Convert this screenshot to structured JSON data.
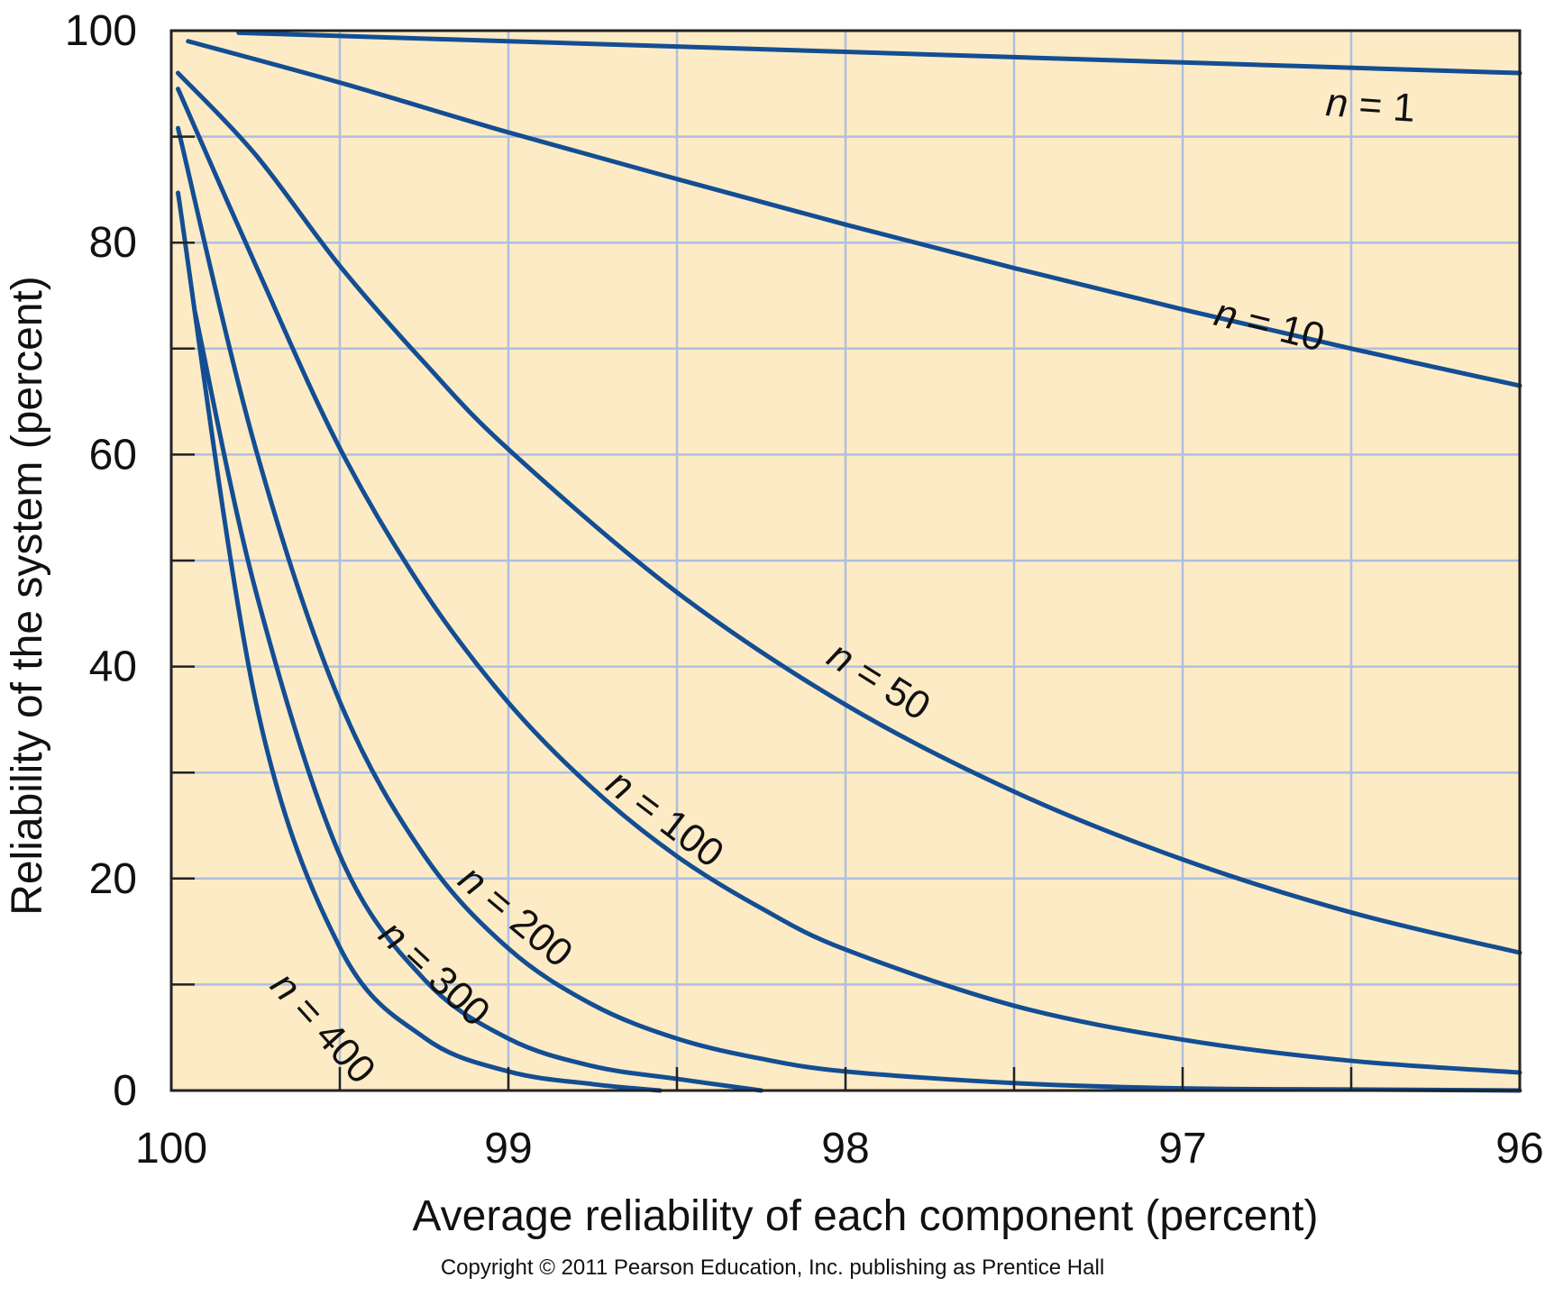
{
  "chart_data": {
    "type": "line",
    "title": "",
    "xlabel": "Average reliability of each component (percent)",
    "ylabel": "Reliability of the system (percent)",
    "xlim": [
      100,
      96
    ],
    "ylim": [
      0,
      100
    ],
    "x_reversed": true,
    "xticks": [
      100,
      99,
      98,
      97,
      96
    ],
    "yticks": [
      0,
      20,
      40,
      60,
      80,
      100
    ],
    "grid": true,
    "legend": "none (inline curve labels)",
    "colors": {
      "background": "#fdebc6",
      "grid": "#aebfe0",
      "line": "#134e93",
      "axis": "#222222"
    },
    "series": [
      {
        "name": "n = 1",
        "label_n": "n",
        "label_rest": " = 1",
        "x": [
          99.8,
          99.0,
          98.0,
          97.0,
          96.0
        ],
        "y": [
          99.8,
          99.0,
          98.0,
          97.0,
          96.0
        ]
      },
      {
        "name": "n = 10",
        "label_n": "n",
        "label_rest": " = 10",
        "x": [
          99.95,
          99.5,
          99.0,
          98.5,
          98.0,
          97.5,
          97.0,
          96.5,
          96.0
        ],
        "y": [
          99.0,
          95.1,
          90.4,
          86.0,
          81.7,
          77.6,
          73.7,
          70.0,
          66.5
        ]
      },
      {
        "name": "n = 50",
        "label_n": "n",
        "label_rest": " = 50",
        "x": [
          99.98,
          99.75,
          99.5,
          99.25,
          99.0,
          98.5,
          98.0,
          97.5,
          97.0,
          96.5,
          96.0
        ],
        "y": [
          96.0,
          88.3,
          77.8,
          68.7,
          60.5,
          47.0,
          36.4,
          28.2,
          21.8,
          16.8,
          13.0
        ]
      },
      {
        "name": "n = 100",
        "label_n": "n",
        "label_rest": " = 100",
        "x": [
          99.98,
          99.75,
          99.5,
          99.25,
          99.0,
          98.75,
          98.5,
          98.25,
          98.0,
          97.5,
          97.0,
          96.5,
          96.0
        ],
        "y": [
          94.5,
          77.9,
          60.6,
          47.1,
          36.6,
          28.5,
          22.1,
          17.2,
          13.3,
          8.0,
          4.8,
          2.8,
          1.7
        ]
      },
      {
        "name": "n = 200",
        "label_n": "n",
        "label_rest": " = 200",
        "x": [
          99.98,
          99.75,
          99.5,
          99.25,
          99.0,
          98.75,
          98.5,
          98.25,
          98.0,
          97.5,
          97.0,
          96.5,
          96.0
        ],
        "y": [
          90.8,
          60.6,
          36.7,
          22.2,
          13.4,
          8.1,
          4.9,
          3.0,
          1.8,
          0.7,
          0.2,
          0.1,
          0.0
        ]
      },
      {
        "name": "n = 300",
        "label_n": "n",
        "label_rest": " = 300",
        "x": [
          99.93,
          99.75,
          99.5,
          99.25,
          99.0,
          98.75,
          98.5,
          98.25
        ],
        "y": [
          73.5,
          47.2,
          22.2,
          10.5,
          4.9,
          2.3,
          1.1,
          0.0
        ]
      },
      {
        "name": "n = 400",
        "label_n": "n",
        "label_rest": " = 400",
        "x": [
          99.98,
          99.75,
          99.5,
          99.25,
          99.0,
          98.75,
          98.55
        ],
        "y": [
          84.7,
          36.8,
          13.5,
          5.0,
          1.8,
          0.6,
          0.0
        ]
      }
    ]
  },
  "footer": {
    "copyright": "Copyright © 2011 Pearson Education, Inc. publishing as Prentice Hall"
  }
}
